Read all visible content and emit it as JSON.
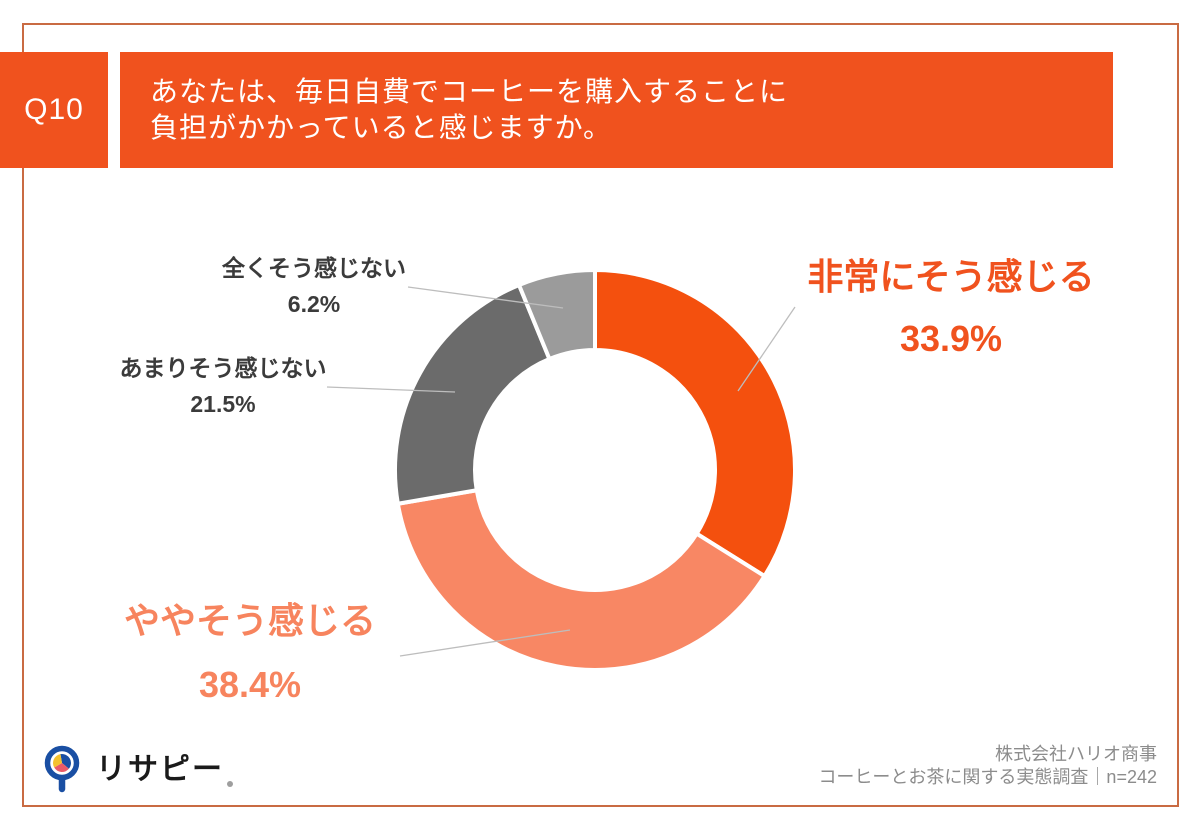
{
  "page": {
    "background_color": "#FFFFFF",
    "frame_border_color": "#C96B43"
  },
  "header": {
    "question_number": "Q10",
    "question_lines": [
      "あなたは、毎日自費でコーヒーを購入することに",
      "負担がかかっていると感じますか。"
    ],
    "banner_color": "#F0521E",
    "text_color": "#FFFFFF"
  },
  "chart_data": {
    "type": "pie",
    "subtype": "donut",
    "categories": [
      "非常にそう感じる",
      "ややそう感じる",
      "あまりそう感じない",
      "全くそう感じない"
    ],
    "values": [
      33.9,
      38.4,
      21.5,
      6.2
    ],
    "unit": "%",
    "colors": [
      "#F4500E",
      "#F88764",
      "#6B6B6B",
      "#9B9B9B"
    ],
    "callout_text_colors": [
      "#F0521E",
      "#F7845E",
      "#3B3B3B",
      "#3B3B3B"
    ],
    "start_angle_deg": 0,
    "direction": "clockwise",
    "inner_radius_ratio": 0.6,
    "slice_gap_color": "#FFFFFF",
    "leader_line_color": "#BDBDBD",
    "legend_position": "callouts"
  },
  "footer": {
    "logo": {
      "brand": "リサピー",
      "icon": "pie-magnifier-logo",
      "icon_colors": {
        "ring": "#1A4FA3",
        "pie_navy": "#1A4FA3",
        "pie_yellow": "#F4C12E",
        "pie_pink": "#EA5A68"
      }
    },
    "credit_line1": "株式会社ハリオ商事",
    "credit_line2": "コーヒーとお茶に関する実態調査｜n=242"
  }
}
